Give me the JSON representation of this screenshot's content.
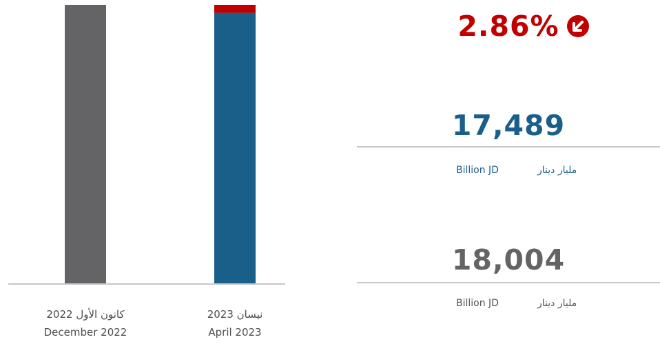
{
  "chart_data": {
    "type": "bar",
    "stacked": true,
    "categories": [
      {
        "ar": "كانون الأول 2022",
        "en": "December 2022"
      },
      {
        "ar": "نيسان 2023",
        "en": "April 2023"
      }
    ],
    "series": [
      {
        "values": [
          18004,
          17489
        ],
        "colors": [
          "#646466",
          "#1a5e8a"
        ]
      },
      {
        "values": [
          0,
          515
        ],
        "colors": [
          "#c00000",
          "#c00000"
        ]
      }
    ],
    "ylim": [
      0,
      18004
    ],
    "grid": false,
    "legend": "none"
  },
  "change": {
    "value": "2.86%",
    "direction": "down",
    "icon": "arrow-down-left-circle-icon",
    "color": "#c00000"
  },
  "current": {
    "value": "17,489",
    "unit_en": "Billion JD",
    "unit_ar": "مليار دينار",
    "color": "#1a5e8a"
  },
  "previous": {
    "value": "18,004",
    "unit_en": "Billion JD",
    "unit_ar": "مليار دينار",
    "color": "#646466"
  }
}
